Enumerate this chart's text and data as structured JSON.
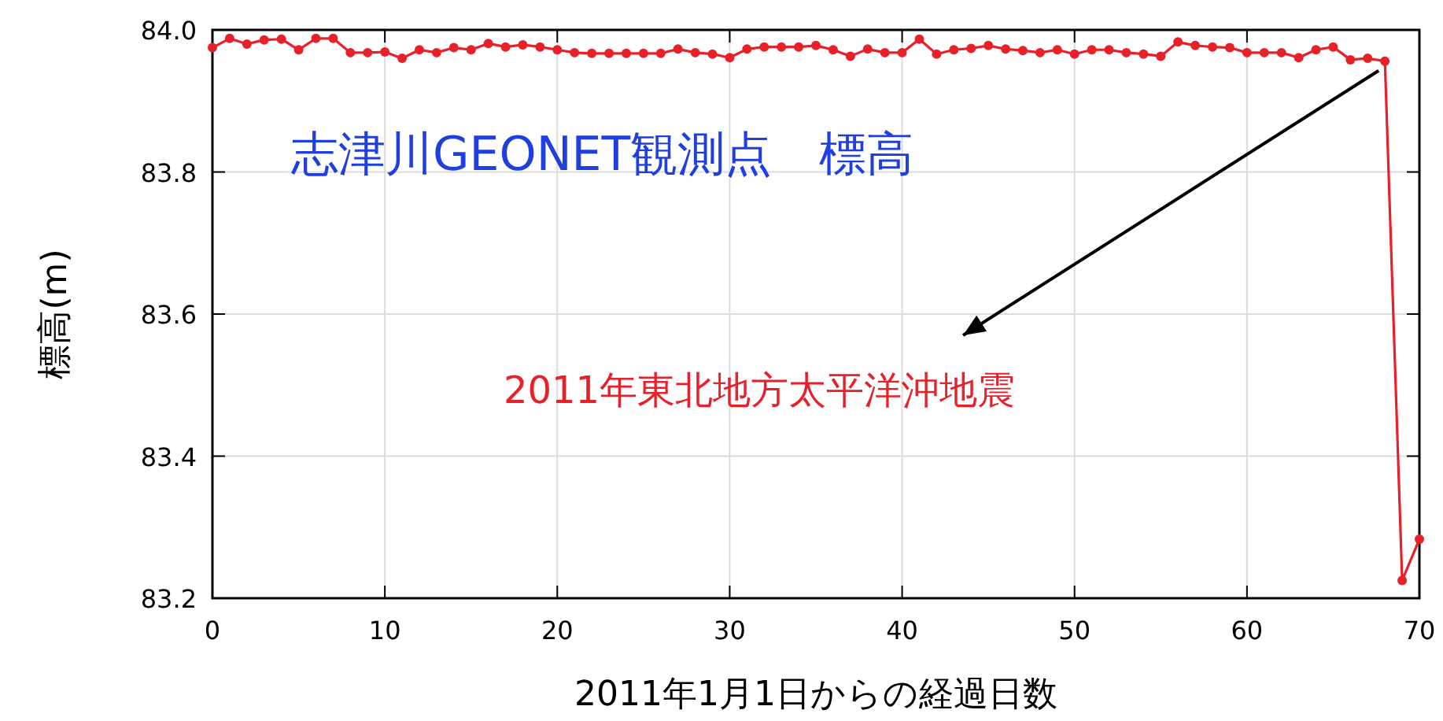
{
  "chart_data": {
    "type": "line",
    "title": "志津川GEONET観測点　標高",
    "xlabel": "2011年1月1日からの経過日数",
    "ylabel": "標高(m)",
    "x": [
      0,
      1,
      2,
      3,
      4,
      5,
      6,
      7,
      8,
      9,
      10,
      11,
      12,
      13,
      14,
      15,
      16,
      17,
      18,
      19,
      20,
      21,
      22,
      23,
      24,
      25,
      26,
      27,
      28,
      29,
      30,
      31,
      32,
      33,
      34,
      35,
      36,
      37,
      38,
      39,
      40,
      41,
      42,
      43,
      44,
      45,
      46,
      47,
      48,
      49,
      50,
      51,
      52,
      53,
      54,
      55,
      56,
      57,
      58,
      59,
      60,
      61,
      62,
      63,
      64,
      65,
      66,
      67,
      68,
      69,
      70
    ],
    "series": [
      {
        "color": "#e8202a",
        "values": [
          83.975,
          83.988,
          83.98,
          83.986,
          83.987,
          83.972,
          83.988,
          83.988,
          83.968,
          83.968,
          83.969,
          83.96,
          83.972,
          83.968,
          83.975,
          83.972,
          83.981,
          83.976,
          83.979,
          83.976,
          83.972,
          83.968,
          83.967,
          83.967,
          83.967,
          83.967,
          83.967,
          83.973,
          83.968,
          83.966,
          83.961,
          83.973,
          83.976,
          83.976,
          83.976,
          83.978,
          83.972,
          83.963,
          83.973,
          83.968,
          83.968,
          83.987,
          83.966,
          83.972,
          83.974,
          83.978,
          83.973,
          83.971,
          83.968,
          83.972,
          83.966,
          83.972,
          83.972,
          83.968,
          83.966,
          83.963,
          83.983,
          83.978,
          83.976,
          83.975,
          83.968,
          83.968,
          83.968,
          83.961,
          83.972,
          83.976,
          83.958,
          83.96,
          83.956,
          83.225,
          83.283
        ]
      }
    ],
    "xlim": [
      0,
      70
    ],
    "ylim": [
      83.2,
      84.0
    ],
    "xticks": [
      0,
      10,
      20,
      30,
      40,
      50,
      60,
      70
    ],
    "yticks": [
      {
        "value": 83.2,
        "label": "83.2"
      },
      {
        "value": 83.4,
        "label": "83.4"
      },
      {
        "value": 83.6,
        "label": "83.6"
      },
      {
        "value": 83.8,
        "label": "83.8"
      },
      {
        "value": 84.0,
        "label": "84.0"
      }
    ],
    "grid": true,
    "marker": "circle",
    "line_style": "solid",
    "annotations": [
      {
        "text": "2011年東北地方太平洋沖地震",
        "x": 68,
        "y": 83.956
      }
    ]
  }
}
